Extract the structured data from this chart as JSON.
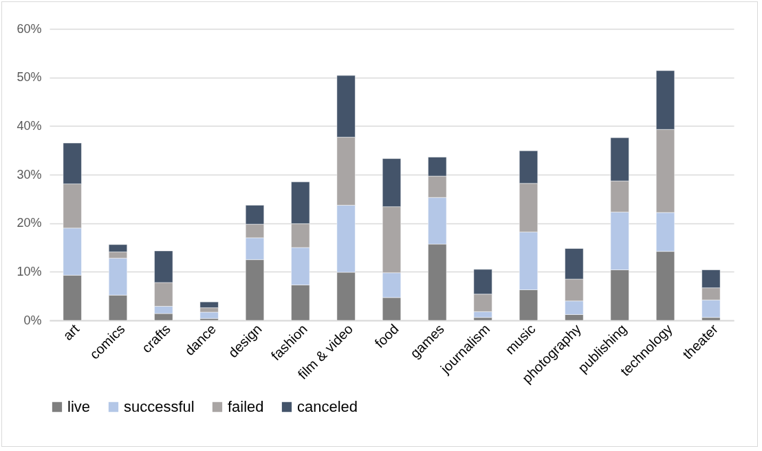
{
  "chart_data": {
    "type": "bar",
    "stacked": true,
    "categories": [
      "art",
      "comics",
      "crafts",
      "dance",
      "design",
      "fashion",
      "film & video",
      "food",
      "games",
      "journalism",
      "music",
      "photography",
      "publishing",
      "technology",
      "theater"
    ],
    "series": [
      {
        "name": "live",
        "color": "#7f7f7f",
        "values": [
          9.3,
          5.2,
          1.4,
          0.4,
          12.5,
          7.3,
          9.9,
          4.7,
          15.7,
          0.6,
          6.3,
          1.2,
          10.4,
          14.2,
          0.6
        ]
      },
      {
        "name": "successful",
        "color": "#b4c7e7",
        "values": [
          9.7,
          7.6,
          1.5,
          1.3,
          4.5,
          7.7,
          13.8,
          5.1,
          9.6,
          1.2,
          11.9,
          2.8,
          11.9,
          8.0,
          3.6
        ]
      },
      {
        "name": "failed",
        "color": "#a9a5a4",
        "values": [
          9.1,
          1.3,
          4.9,
          0.9,
          2.8,
          4.9,
          14.0,
          13.6,
          4.4,
          3.6,
          10.0,
          4.5,
          6.4,
          17.1,
          2.5
        ]
      },
      {
        "name": "canceled",
        "color": "#44546a",
        "values": [
          8.4,
          1.5,
          6.5,
          1.2,
          3.9,
          8.6,
          12.7,
          9.9,
          3.9,
          5.1,
          6.7,
          6.3,
          8.9,
          12.1,
          3.7
        ]
      }
    ],
    "ylim": [
      0,
      60
    ],
    "yticks": [
      {
        "value": 0,
        "label": "0%"
      },
      {
        "value": 10,
        "label": "10%"
      },
      {
        "value": 20,
        "label": "20%"
      },
      {
        "value": 30,
        "label": "30%"
      },
      {
        "value": 40,
        "label": "40%"
      },
      {
        "value": 50,
        "label": "50%"
      },
      {
        "value": 60,
        "label": "60%"
      }
    ],
    "grid": "y",
    "legend": "bottom"
  }
}
